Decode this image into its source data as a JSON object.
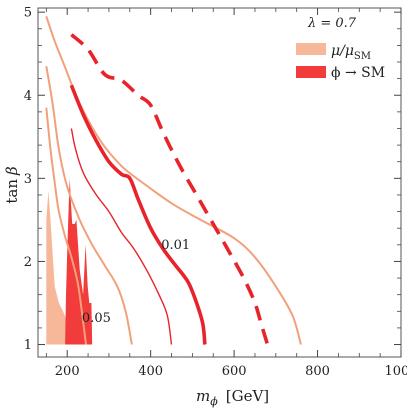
{
  "chart_data": {
    "type": "line",
    "xlabel": "m_ϕ  [GeV]",
    "xlabel_parts": {
      "symbol": "m",
      "subscript": "ϕ",
      "unit": "[GeV]"
    },
    "ylabel": "tan β",
    "ylabel_parts": {
      "prefix": "tan",
      "symbol": "β"
    },
    "xlim": [
      130,
      1000
    ],
    "ylim": [
      0.85,
      5.05
    ],
    "xticks": [
      200,
      400,
      600,
      800,
      1000
    ],
    "xtick_labels": [
      "200",
      "400",
      "600",
      "800",
      "1000"
    ],
    "yticks": [
      1,
      2,
      3,
      4,
      5
    ],
    "ytick_labels": [
      "1",
      "2",
      "3",
      "4",
      "5"
    ],
    "grid": false,
    "annotation_lambda": "λ = 0.7",
    "legend_position": "top-right",
    "legend": [
      {
        "label": "μ/μ_SM",
        "label_main": "μ/μ",
        "label_sub": "SM",
        "color": "#f7b89a"
      },
      {
        "label": "ϕ → SM",
        "color": "#f23b3b"
      }
    ],
    "colors": {
      "coupling_contour": "#f2a07c",
      "search_contour": "#e8232a",
      "region_mu": "#f7b89a",
      "region_phi": "#f23b3b"
    },
    "regions": [
      {
        "name": "mu_excluded",
        "color": "#f7b89a",
        "points": [
          [
            150,
            1
          ],
          [
            150,
            2.5
          ],
          [
            155,
            2.85
          ],
          [
            160,
            2.5
          ],
          [
            170,
            1.7
          ],
          [
            180,
            1.5
          ],
          [
            190,
            1.4
          ],
          [
            198,
            1.3
          ],
          [
            200,
            1
          ],
          [
            150,
            1
          ]
        ]
      },
      {
        "name": "phi_excluded",
        "color": "#f23b3b",
        "points": [
          [
            195,
            1
          ],
          [
            197,
            1.6
          ],
          [
            200,
            2.1
          ],
          [
            203,
            2.6
          ],
          [
            206,
            3.0
          ],
          [
            209,
            2.7
          ],
          [
            212,
            2.45
          ],
          [
            218,
            2.45
          ],
          [
            222,
            2.5
          ],
          [
            230,
            1.9
          ],
          [
            238,
            1.6
          ],
          [
            244,
            2.2
          ],
          [
            249,
            1.7
          ],
          [
            253,
            1.5
          ],
          [
            258,
            1.5
          ],
          [
            260,
            1
          ],
          [
            195,
            1
          ]
        ]
      }
    ],
    "contours": [
      {
        "group": "mu",
        "style": "thin",
        "color": "#f2a07c",
        "points": [
          [
            150,
            4.95
          ],
          [
            170,
            4.65
          ],
          [
            190,
            4.4
          ],
          [
            230,
            3.9
          ],
          [
            280,
            3.45
          ],
          [
            330,
            3.15
          ],
          [
            380,
            2.95
          ],
          [
            450,
            2.7
          ],
          [
            520,
            2.5
          ],
          [
            600,
            2.28
          ],
          [
            650,
            2.05
          ],
          [
            700,
            1.7
          ],
          [
            740,
            1.35
          ],
          [
            760,
            1.0
          ]
        ]
      },
      {
        "group": "mu",
        "style": "thin",
        "color": "#f2a07c",
        "points": [
          [
            150,
            4.35
          ],
          [
            165,
            3.9
          ],
          [
            180,
            3.35
          ],
          [
            200,
            2.9
          ],
          [
            230,
            2.5
          ],
          [
            260,
            2.2
          ],
          [
            290,
            1.95
          ],
          [
            320,
            1.7
          ],
          [
            340,
            1.4
          ],
          [
            355,
            1.0
          ]
        ]
      },
      {
        "group": "mu",
        "style": "thin",
        "color": "#f2a07c",
        "points": [
          [
            150,
            3.85
          ],
          [
            160,
            3.35
          ],
          [
            170,
            2.95
          ],
          [
            180,
            2.6
          ],
          [
            195,
            2.3
          ],
          [
            210,
            2.05
          ],
          [
            225,
            1.75
          ],
          [
            235,
            1.4
          ],
          [
            245,
            1.0
          ]
        ]
      },
      {
        "group": "phi",
        "style": "thin",
        "color": "#e8232a",
        "points": [
          [
            210,
            3.6
          ],
          [
            220,
            3.35
          ],
          [
            240,
            3.05
          ],
          [
            270,
            2.8
          ],
          [
            300,
            2.6
          ],
          [
            330,
            2.35
          ],
          [
            360,
            2.15
          ],
          [
            390,
            1.9
          ],
          [
            420,
            1.6
          ],
          [
            440,
            1.35
          ],
          [
            450,
            1.0
          ]
        ]
      },
      {
        "group": "phi",
        "style": "thick",
        "color": "#e8232a",
        "points": [
          [
            210,
            4.12
          ],
          [
            240,
            3.75
          ],
          [
            270,
            3.45
          ],
          [
            300,
            3.2
          ],
          [
            330,
            3.05
          ],
          [
            350,
            3.0
          ],
          [
            370,
            2.75
          ],
          [
            400,
            2.4
          ],
          [
            430,
            2.15
          ],
          [
            460,
            1.95
          ],
          [
            490,
            1.75
          ],
          [
            510,
            1.5
          ],
          [
            525,
            1.25
          ],
          [
            530,
            1.0
          ]
        ]
      },
      {
        "group": "phi",
        "style": "dashed",
        "color": "#e8232a",
        "points": [
          [
            210,
            4.73
          ],
          [
            250,
            4.55
          ],
          [
            290,
            4.25
          ],
          [
            330,
            4.18
          ],
          [
            370,
            4.0
          ],
          [
            400,
            3.88
          ],
          [
            430,
            3.55
          ],
          [
            470,
            3.15
          ],
          [
            510,
            2.8
          ],
          [
            550,
            2.45
          ],
          [
            590,
            2.1
          ],
          [
            625,
            1.78
          ],
          [
            650,
            1.5
          ],
          [
            665,
            1.25
          ],
          [
            680,
            1.0
          ]
        ]
      }
    ],
    "contour_labels": [
      {
        "text": "0.01",
        "x": 460,
        "y": 2.15
      },
      {
        "text": "0.05",
        "x": 270,
        "y": 1.27
      }
    ]
  }
}
